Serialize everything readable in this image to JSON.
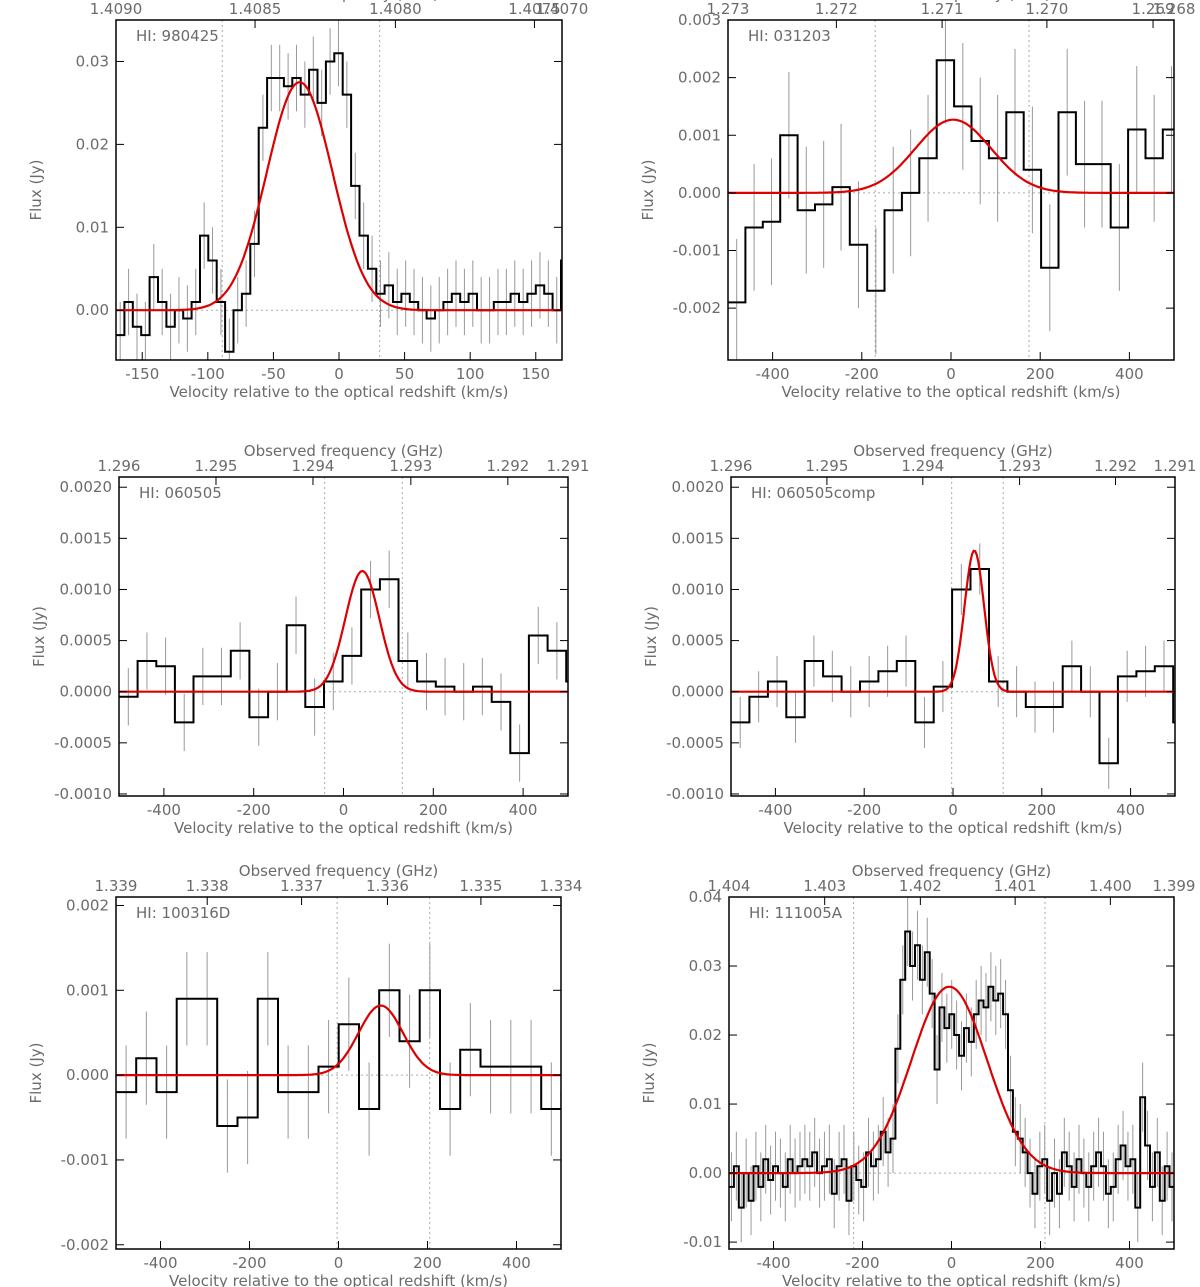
{
  "colors": {
    "spectrum": "#000000",
    "fit": "#dd0000",
    "axis": "#000000",
    "text": "#6b6b6b",
    "errorbar": "#999999",
    "refline": "#aaaaaa"
  },
  "chart_data": [
    {
      "type": "line",
      "label": "HI: 980425",
      "xlabel": "Velocity relative to the optical redshift (km/s)",
      "ylabel": "Flux (Jy)",
      "toplabel": "Observed frequency (GHz)",
      "xlim": [
        -170,
        170
      ],
      "ylim": [
        -0.006,
        0.035
      ],
      "xticks": [
        -150,
        -100,
        -50,
        0,
        50,
        100,
        150
      ],
      "yticks": [
        0.0,
        0.01,
        0.02,
        0.03
      ],
      "ytick_decimals": 2,
      "top_ticks": [
        {
          "label": "1.4090",
          "v": -170
        },
        {
          "label": "1.4085",
          "v": -64
        },
        {
          "label": "1.4080",
          "v": 43
        },
        {
          "label": "1.4075",
          "v": 149
        },
        {
          "label": "1.4070",
          "v": 256
        }
      ],
      "vlines": [
        -89,
        31
      ],
      "fit": {
        "amp": 0.0275,
        "mu": -30,
        "sigma": 25
      },
      "step_x0": -170,
      "step_dx": 6.4,
      "values": [
        -0.003,
        0.001,
        -0.002,
        -0.003,
        0.004,
        0.001,
        -0.002,
        0.0,
        -0.001,
        0.001,
        0.009,
        0.006,
        0.001,
        -0.005,
        0.0,
        0.002,
        0.008,
        0.022,
        0.028,
        0.028,
        0.027,
        0.028,
        0.026,
        0.029,
        0.025,
        0.03,
        0.031,
        0.026,
        0.015,
        0.009,
        0.005,
        0.002,
        0.003,
        0.001,
        0.002,
        0.001,
        0.0,
        -0.001,
        0.0,
        0.001,
        0.002,
        0.001,
        0.002,
        0.0,
        0.0,
        0.001,
        0.001,
        0.002,
        0.001,
        0.002,
        0.003,
        0.002,
        0.0,
        0.006,
        0.005
      ],
      "err": 0.004
    },
    {
      "type": "line",
      "label": "HI: 031203",
      "xlabel": "Velocity relative to the optical redshift (km/s)",
      "ylabel": "Flux (Jy)",
      "toplabel": "Observed frequency (GHz)",
      "xlim": [
        -500,
        500
      ],
      "ylim": [
        -0.0029,
        0.003
      ],
      "xticks": [
        -400,
        -200,
        0,
        200,
        400
      ],
      "yticks": [
        -0.003,
        -0.002,
        -0.001,
        0.0,
        0.001,
        0.002,
        0.003
      ],
      "ytick_decimals": 3,
      "top_ticks": [
        {
          "label": "1.273",
          "v": -500
        },
        {
          "label": "1.272",
          "v": -257
        },
        {
          "label": "1.271",
          "v": -20
        },
        {
          "label": "1.270",
          "v": 215
        },
        {
          "label": "1.269",
          "v": 453
        },
        {
          "label": "1.268",
          "v": 690
        }
      ],
      "vlines": [
        -170,
        175
      ],
      "fit": {
        "amp": 0.00127,
        "mu": 5,
        "sigma": 85
      },
      "step_x0": -500,
      "step_dx": 39,
      "values": [
        -0.0019,
        -0.0006,
        -0.0005,
        0.001,
        -0.0003,
        -0.0002,
        0.0001,
        -0.0009,
        -0.0017,
        -0.0003,
        0.0,
        0.0006,
        0.0023,
        0.0015,
        0.0009,
        0.0006,
        0.0014,
        0.0004,
        -0.0013,
        0.0014,
        0.0005,
        0.0005,
        -0.0006,
        0.0011,
        0.0006,
        0.0011,
        -0.0009
      ],
      "err": 0.0011
    },
    {
      "type": "line",
      "label": "HI: 060505",
      "xlabel": "Velocity relative to the optical redshift (km/s)",
      "ylabel": "Flux (Jy)",
      "toplabel": "Observed frequency (GHz)",
      "xlim": [
        -500,
        500
      ],
      "ylim": [
        -0.00102,
        0.0021
      ],
      "xticks": [
        -400,
        -200,
        0,
        200,
        400
      ],
      "yticks": [
        -0.001,
        -0.0005,
        0.0,
        0.0005,
        0.001,
        0.0015,
        0.002
      ],
      "ytick_decimals": 4,
      "top_ticks": [
        {
          "label": "1.296",
          "v": -500
        },
        {
          "label": "1.295",
          "v": -284
        },
        {
          "label": "1.294",
          "v": -68
        },
        {
          "label": "1.293",
          "v": 150
        },
        {
          "label": "1.292",
          "v": 366
        },
        {
          "label": "1.291",
          "v": 582
        }
      ],
      "vlines": [
        -42,
        131
      ],
      "fit": {
        "amp": 0.00118,
        "mu": 42,
        "sigma": 38
      },
      "step_x0": -500,
      "step_dx": 41.5,
      "values": [
        -5e-05,
        0.0003,
        0.00025,
        -0.0003,
        0.00015,
        0.00015,
        0.0004,
        -0.00025,
        0.0,
        0.00065,
        -0.00015,
        0.0001,
        0.00035,
        0.001,
        0.0011,
        0.0003,
        0.0001,
        5e-05,
        0.0,
        5e-05,
        -0.0001,
        -0.0006,
        0.00055,
        0.0004,
        0.0001
      ],
      "err": 0.00028
    },
    {
      "type": "line",
      "label": "HI: 060505comp",
      "xlabel": "Velocity relative to the optical redshift (km/s)",
      "ylabel": "Flux (Jy)",
      "toplabel": "Observed frequency (GHz)",
      "xlim": [
        -500,
        500
      ],
      "ylim": [
        -0.00102,
        0.0021
      ],
      "xticks": [
        -400,
        -200,
        0,
        200,
        400
      ],
      "yticks": [
        -0.001,
        -0.0005,
        0.0,
        0.0005,
        0.001,
        0.0015,
        0.002
      ],
      "ytick_decimals": 4,
      "top_ticks": [
        {
          "label": "1.296",
          "v": -500
        },
        {
          "label": "1.295",
          "v": -284
        },
        {
          "label": "1.294",
          "v": -68
        },
        {
          "label": "1.293",
          "v": 150
        },
        {
          "label": "1.292",
          "v": 366
        },
        {
          "label": "1.291",
          "v": 582
        }
      ],
      "vlines": [
        -3,
        113
      ],
      "fit": {
        "amp": 0.00138,
        "mu": 48,
        "sigma": 22
      },
      "step_x0": -500,
      "step_dx": 41.5,
      "values": [
        -0.0003,
        -5e-05,
        0.0001,
        -0.00025,
        0.0003,
        0.00015,
        0.0,
        0.0001,
        0.0002,
        0.0003,
        -0.0003,
        5e-05,
        0.001,
        0.0012,
        0.0001,
        0.0,
        -0.00015,
        -0.00015,
        0.00025,
        0.0,
        -0.0007,
        0.00015,
        0.0002,
        0.00025,
        -0.0003
      ],
      "err": 0.00025
    },
    {
      "type": "line",
      "label": "HI: 100316D",
      "xlabel": "Velocity relative to the optical redshift (km/s)",
      "ylabel": "Flux (Jy)",
      "toplabel": "Observed frequency (GHz)",
      "xlim": [
        -500,
        500
      ],
      "ylim": [
        -0.00205,
        0.0021
      ],
      "xticks": [
        -400,
        -200,
        0,
        200,
        400
      ],
      "yticks": [
        -0.002,
        -0.001,
        0.0,
        0.001,
        0.002
      ],
      "ytick_decimals": 3,
      "top_ticks": [
        {
          "label": "1.339",
          "v": -500
        },
        {
          "label": "1.338",
          "v": -295
        },
        {
          "label": "1.337",
          "v": -83
        },
        {
          "label": "1.336",
          "v": 110
        },
        {
          "label": "1.335",
          "v": 320
        },
        {
          "label": "1.334",
          "v": 530
        }
      ],
      "vlines": [
        -3,
        205
      ],
      "fit": {
        "amp": 0.00082,
        "mu": 95,
        "sigma": 50
      },
      "step_x0": -500,
      "step_dx": 45.5,
      "values": [
        -0.0002,
        0.0002,
        -0.0002,
        0.0009,
        0.0009,
        -0.0006,
        -0.0005,
        0.0009,
        -0.0002,
        -0.0002,
        0.0001,
        0.0006,
        -0.0004,
        0.001,
        0.0004,
        0.001,
        -0.0004,
        0.0003,
        0.0001,
        0.0001,
        0.0001,
        -0.0004,
        -0.0002,
        0.001
      ],
      "err": 0.00055
    },
    {
      "type": "line",
      "label": "HI: 111005A",
      "xlabel": "Velocity relative to the optical redshift (km/s)",
      "ylabel": "Flux (Jy)",
      "toplabel": "Observed frequency (GHz)",
      "xlim": [
        -500,
        500
      ],
      "ylim": [
        -0.011,
        0.04
      ],
      "xticks": [
        -400,
        -200,
        0,
        200,
        400
      ],
      "yticks": [
        -0.01,
        0.0,
        0.01,
        0.02,
        0.03,
        0.04
      ],
      "ytick_decimals": 2,
      "top_ticks": [
        {
          "label": "1.404",
          "v": -500
        },
        {
          "label": "1.403",
          "v": -285
        },
        {
          "label": "1.402",
          "v": -70
        },
        {
          "label": "1.401",
          "v": 143
        },
        {
          "label": "1.400",
          "v": 357
        },
        {
          "label": "1.399",
          "v": 570
        }
      ],
      "vlines": [
        -220,
        210
      ],
      "fit": {
        "amp": 0.027,
        "mu": -5,
        "sigma": 85
      },
      "step_x0": -500,
      "step_dx": 11,
      "values": [
        -0.002,
        0.001,
        -0.005,
        0.0,
        -0.004,
        0.001,
        -0.002,
        0.002,
        -0.001,
        0.001,
        0.0,
        -0.002,
        0.002,
        0.0,
        0.001,
        0.002,
        0.001,
        0.003,
        0.0,
        0.001,
        0.002,
        -0.003,
        0.001,
        0.002,
        -0.004,
        0.001,
        -0.001,
        -0.002,
        0.003,
        0.001,
        0.002,
        0.006,
        0.003,
        0.005,
        0.018,
        0.028,
        0.035,
        0.03,
        0.033,
        0.028,
        0.032,
        0.026,
        0.015,
        0.024,
        0.021,
        0.023,
        0.02,
        0.017,
        0.021,
        0.019,
        0.023,
        0.025,
        0.024,
        0.027,
        0.025,
        0.026,
        0.023,
        0.012,
        0.006,
        0.005,
        0.003,
        0.0,
        -0.003,
        0.001,
        0.002,
        -0.004,
        0.0,
        -0.003,
        0.003,
        0.001,
        -0.002,
        0.002,
        0.0,
        -0.002,
        0.001,
        0.003,
        0.001,
        -0.003,
        -0.002,
        0.002,
        0.004,
        0.001,
        0.002,
        -0.005,
        0.011,
        0.004,
        -0.002,
        0.003,
        -0.004,
        0.001,
        -0.002
      ],
      "err": 0.005
    }
  ]
}
